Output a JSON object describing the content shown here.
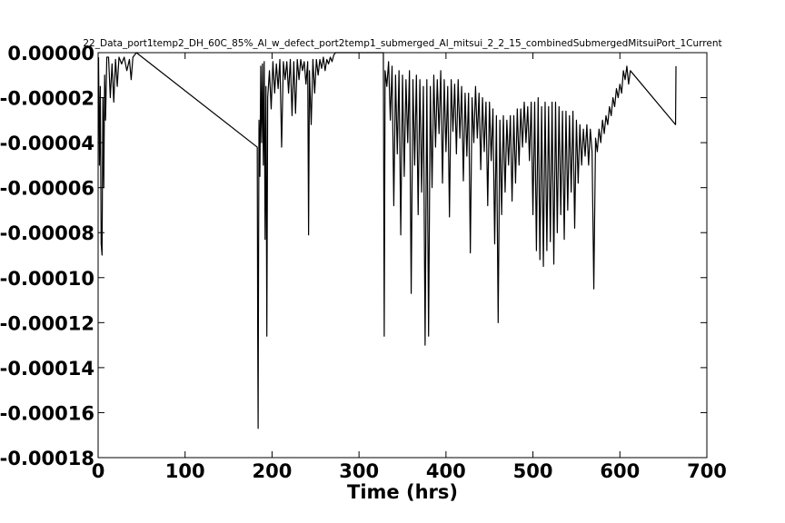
{
  "chart_data": {
    "type": "line",
    "title": "22_Data_port1temp2_DH_60C_85%_Al_w_defect_port2temp1_submerged_Al_mitsui_2_2_15_combinedSubmergedMitsuiPort_1Current",
    "xlabel": "Time (hrs)",
    "ylabel": "",
    "xlim": [
      0,
      700
    ],
    "ylim": [
      -0.00018,
      0.0
    ],
    "x_ticks": [
      0,
      100,
      200,
      300,
      400,
      500,
      600,
      700
    ],
    "x_tick_labels": [
      "0",
      "100",
      "200",
      "300",
      "400",
      "500",
      "600",
      "700"
    ],
    "y_ticks": [
      0.0,
      -2e-05,
      -4e-05,
      -6e-05,
      -8e-05,
      -0.0001,
      -0.00012,
      -0.00014,
      -0.00016,
      -0.00018
    ],
    "y_tick_labels": [
      "0.00000",
      "-0.00002",
      "-0.00004",
      "-0.00006",
      "-0.00008",
      "-0.00010",
      "-0.00012",
      "-0.00014",
      "-0.00016",
      "-0.00018"
    ],
    "grid": false,
    "line_color": "#000000",
    "series": [
      {
        "name": "",
        "points": [
          [
            0.5,
            -2e-06
          ],
          [
            1.5,
            -5e-05
          ],
          [
            2.5,
            -1.5e-05
          ],
          [
            3.5,
            -8.5e-05
          ],
          [
            4.5,
            -9e-05
          ],
          [
            5.5,
            -2e-05
          ],
          [
            6.5,
            -6e-05
          ],
          [
            7.5,
            -1e-05
          ],
          [
            8.5,
            -3e-05
          ],
          [
            10,
            -2e-06
          ],
          [
            12,
            -2e-06
          ],
          [
            14,
            -2e-05
          ],
          [
            16,
            -5e-06
          ],
          [
            18,
            -2.2e-05
          ],
          [
            20,
            -3e-06
          ],
          [
            22,
            -1.5e-05
          ],
          [
            24,
            -2e-06
          ],
          [
            27,
            -5e-06
          ],
          [
            30,
            -2e-06
          ],
          [
            33,
            -8e-06
          ],
          [
            36,
            -3e-06
          ],
          [
            38,
            -1.2e-05
          ],
          [
            40,
            -2e-06
          ],
          [
            42,
            -1e-06
          ],
          [
            44,
            0.0
          ],
          [
            183,
            -4.2e-05
          ],
          [
            183.5,
            -0.000125
          ],
          [
            184,
            -0.000167
          ],
          [
            184.5,
            -9e-05
          ],
          [
            185,
            -3e-05
          ],
          [
            186,
            -5.5e-05
          ],
          [
            187,
            -6e-06
          ],
          [
            188,
            -4e-05
          ],
          [
            189,
            -5e-06
          ],
          [
            190,
            -5e-05
          ],
          [
            191,
            -4e-06
          ],
          [
            192,
            -8.3e-05
          ],
          [
            193,
            -1.5e-05
          ],
          [
            194,
            -0.000126
          ],
          [
            195,
            -2e-05
          ],
          [
            197,
            -8e-06
          ],
          [
            199,
            -2.5e-05
          ],
          [
            201,
            -4e-06
          ],
          [
            203,
            -1.8e-05
          ],
          [
            205,
            -5e-06
          ],
          [
            207,
            -1.6e-05
          ],
          [
            209,
            -3e-06
          ],
          [
            211,
            -4.2e-05
          ],
          [
            213,
            -4e-06
          ],
          [
            215,
            -1.2e-05
          ],
          [
            217,
            -4e-06
          ],
          [
            219,
            -1.8e-05
          ],
          [
            221,
            -3e-06
          ],
          [
            223,
            -2.8e-05
          ],
          [
            225,
            -4e-06
          ],
          [
            227,
            -2.7e-05
          ],
          [
            229,
            -3e-06
          ],
          [
            231,
            -1.2e-05
          ],
          [
            233,
            -3e-06
          ],
          [
            235,
            -8e-06
          ],
          [
            237,
            -4e-06
          ],
          [
            239,
            -1.4e-05
          ],
          [
            241,
            -4e-06
          ],
          [
            242,
            -8.1e-05
          ],
          [
            243,
            -8e-06
          ],
          [
            245,
            -3.2e-05
          ],
          [
            247,
            -3e-06
          ],
          [
            249,
            -1.8e-05
          ],
          [
            251,
            -3e-06
          ],
          [
            253,
            -1e-05
          ],
          [
            255,
            -3e-06
          ],
          [
            257,
            -7e-06
          ],
          [
            259,
            -2e-06
          ],
          [
            261,
            -8e-06
          ],
          [
            263,
            -3e-06
          ],
          [
            265,
            -5e-06
          ],
          [
            267,
            -2e-06
          ],
          [
            269,
            -4e-06
          ],
          [
            271,
            -1e-06
          ],
          [
            273,
            0.0
          ],
          [
            328,
            0.0
          ],
          [
            329,
            -0.000126
          ],
          [
            330,
            -8e-06
          ],
          [
            332,
            -1.5e-05
          ],
          [
            334,
            -4e-06
          ],
          [
            336,
            -3e-05
          ],
          [
            338,
            -6e-06
          ],
          [
            340,
            -6.8e-05
          ],
          [
            342,
            -1e-05
          ],
          [
            344,
            -4.5e-05
          ],
          [
            346,
            -8e-06
          ],
          [
            348,
            -8.1e-05
          ],
          [
            350,
            -1e-05
          ],
          [
            352,
            -5.5e-05
          ],
          [
            354,
            -1.2e-05
          ],
          [
            356,
            -4e-05
          ],
          [
            358,
            -8e-06
          ],
          [
            360,
            -0.000107
          ],
          [
            362,
            -1.2e-05
          ],
          [
            364,
            -5e-05
          ],
          [
            366,
            -1e-05
          ],
          [
            368,
            -7.2e-05
          ],
          [
            370,
            -1.2e-05
          ],
          [
            372,
            -6.2e-05
          ],
          [
            374,
            -1.5e-05
          ],
          [
            376,
            -0.00013
          ],
          [
            378,
            -1.2e-05
          ],
          [
            380,
            -0.000126
          ],
          [
            382,
            -1.5e-05
          ],
          [
            384,
            -6e-05
          ],
          [
            386,
            -1e-05
          ],
          [
            388,
            -4.2e-05
          ],
          [
            390,
            -1.2e-05
          ],
          [
            392,
            -3.6e-05
          ],
          [
            394,
            -8e-06
          ],
          [
            396,
            -5.8e-05
          ],
          [
            398,
            -1.2e-05
          ],
          [
            400,
            -4.4e-05
          ],
          [
            402,
            -1.5e-05
          ],
          [
            404,
            -7.3e-05
          ],
          [
            406,
            -1.2e-05
          ],
          [
            408,
            -3.5e-05
          ],
          [
            410,
            -1.4e-05
          ],
          [
            412,
            -4.5e-05
          ],
          [
            414,
            -1.2e-05
          ],
          [
            416,
            -3.8e-05
          ],
          [
            418,
            -1.5e-05
          ],
          [
            420,
            -5.7e-05
          ],
          [
            422,
            -1.8e-05
          ],
          [
            424,
            -4.6e-05
          ],
          [
            426,
            -1.8e-05
          ],
          [
            428,
            -8.9e-05
          ],
          [
            430,
            -2e-05
          ],
          [
            432,
            -4e-05
          ],
          [
            434,
            -1.5e-05
          ],
          [
            436,
            -3.8e-05
          ],
          [
            438,
            -1.8e-05
          ],
          [
            440,
            -5.2e-05
          ],
          [
            442,
            -2e-05
          ],
          [
            444,
            -4.4e-05
          ],
          [
            446,
            -2.2e-05
          ],
          [
            448,
            -6.8e-05
          ],
          [
            450,
            -2.2e-05
          ],
          [
            452,
            -4.8e-05
          ],
          [
            454,
            -2.5e-05
          ],
          [
            456,
            -8.5e-05
          ],
          [
            458,
            -2.8e-05
          ],
          [
            460,
            -0.00012
          ],
          [
            462,
            -3e-05
          ],
          [
            464,
            -7.2e-05
          ],
          [
            466,
            -2.8e-05
          ],
          [
            468,
            -6.2e-05
          ],
          [
            470,
            -3e-05
          ],
          [
            472,
            -5e-05
          ],
          [
            474,
            -2.8e-05
          ],
          [
            476,
            -6.6e-05
          ],
          [
            478,
            -2.8e-05
          ],
          [
            480,
            -5.8e-05
          ],
          [
            482,
            -2.5e-05
          ],
          [
            484,
            -5e-05
          ],
          [
            486,
            -2.5e-05
          ],
          [
            488,
            -4.2e-05
          ],
          [
            490,
            -2.2e-05
          ],
          [
            492,
            -4e-05
          ],
          [
            494,
            -2.4e-05
          ],
          [
            496,
            -4.8e-05
          ],
          [
            498,
            -2.2e-05
          ],
          [
            500,
            -7.2e-05
          ],
          [
            502,
            -2.2e-05
          ],
          [
            504,
            -8.8e-05
          ],
          [
            506,
            -2e-05
          ],
          [
            508,
            -9.2e-05
          ],
          [
            510,
            -2.4e-05
          ],
          [
            512,
            -9.5e-05
          ],
          [
            514,
            -2.2e-05
          ],
          [
            516,
            -8.8e-05
          ],
          [
            518,
            -2.4e-05
          ],
          [
            520,
            -8.4e-05
          ],
          [
            522,
            -2.2e-05
          ],
          [
            524,
            -9.4e-05
          ],
          [
            526,
            -2.2e-05
          ],
          [
            528,
            -8e-05
          ],
          [
            530,
            -2.4e-05
          ],
          [
            532,
            -7.2e-05
          ],
          [
            534,
            -2.6e-05
          ],
          [
            536,
            -8.3e-05
          ],
          [
            538,
            -2.6e-05
          ],
          [
            540,
            -7e-05
          ],
          [
            542,
            -2.8e-05
          ],
          [
            544,
            -6.2e-05
          ],
          [
            546,
            -2.6e-05
          ],
          [
            548,
            -7.8e-05
          ],
          [
            550,
            -3e-05
          ],
          [
            552,
            -5.8e-05
          ],
          [
            554,
            -3.2e-05
          ],
          [
            556,
            -5e-05
          ],
          [
            558,
            -3.4e-05
          ],
          [
            560,
            -4.6e-05
          ],
          [
            562,
            -3.2e-05
          ],
          [
            564,
            -5e-05
          ],
          [
            566,
            -3.4e-05
          ],
          [
            568,
            -4.4e-05
          ],
          [
            570,
            -0.000105
          ],
          [
            572,
            -3.8e-05
          ],
          [
            574,
            -4.4e-05
          ],
          [
            576,
            -3.4e-05
          ],
          [
            578,
            -4e-05
          ],
          [
            580,
            -3e-05
          ],
          [
            582,
            -3.6e-05
          ],
          [
            584,
            -2.8e-05
          ],
          [
            586,
            -3.2e-05
          ],
          [
            588,
            -2.4e-05
          ],
          [
            590,
            -2.8e-05
          ],
          [
            592,
            -2e-05
          ],
          [
            594,
            -2.4e-05
          ],
          [
            596,
            -1.6e-05
          ],
          [
            598,
            -2e-05
          ],
          [
            600,
            -1.4e-05
          ],
          [
            602,
            -1.8e-05
          ],
          [
            604,
            -8e-06
          ],
          [
            606,
            -1.2e-05
          ],
          [
            608,
            -6e-06
          ],
          [
            610,
            -1.4e-05
          ],
          [
            612,
            -8e-06
          ],
          [
            664,
            -3.2e-05
          ],
          [
            664.5,
            -6e-06
          ]
        ]
      }
    ]
  }
}
